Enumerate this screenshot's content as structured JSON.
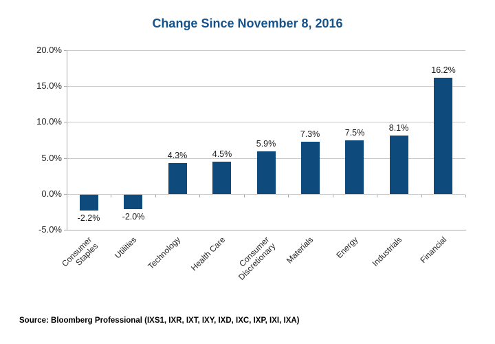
{
  "source": "Source: Bloomberg Professional (IXS1, IXR, IXT, IXY, IXD, IXC, IXP, IXI, IXA)",
  "chart_data": {
    "type": "bar",
    "title": "Change Since November 8, 2016",
    "categories": [
      "Consumer Staples",
      "Utilities",
      "Technology",
      "Health Care",
      "Consumer Discretionary",
      "Materials",
      "Energy",
      "Industrials",
      "Financial"
    ],
    "categories_display": [
      "Consumer\nStaples",
      "Utilities",
      "Technology",
      "Health Care",
      "Consumer\nDiscretionary",
      "Materials",
      "Energy",
      "Industrials",
      "Financial"
    ],
    "values": [
      -2.2,
      -2.0,
      4.3,
      4.5,
      5.9,
      7.3,
      7.5,
      8.1,
      16.2
    ],
    "data_labels": [
      "-2.2%",
      "-2.0%",
      "4.3%",
      "4.5%",
      "5.9%",
      "7.3%",
      "7.5%",
      "8.1%",
      "16.2%"
    ],
    "xlabel": "",
    "ylabel": "",
    "ylim": [
      -5,
      20
    ],
    "ytick_interval": 5,
    "ytick_values": [
      20,
      15,
      10,
      5,
      0,
      -5
    ],
    "ytick_labels": [
      "20.0%",
      "15.0%",
      "10.0%",
      "5.0%",
      "0.0%",
      "-5.0%"
    ],
    "grid": true,
    "legend": "none",
    "bar_color": "#0e4a7b",
    "title_color": "#15538c"
  }
}
